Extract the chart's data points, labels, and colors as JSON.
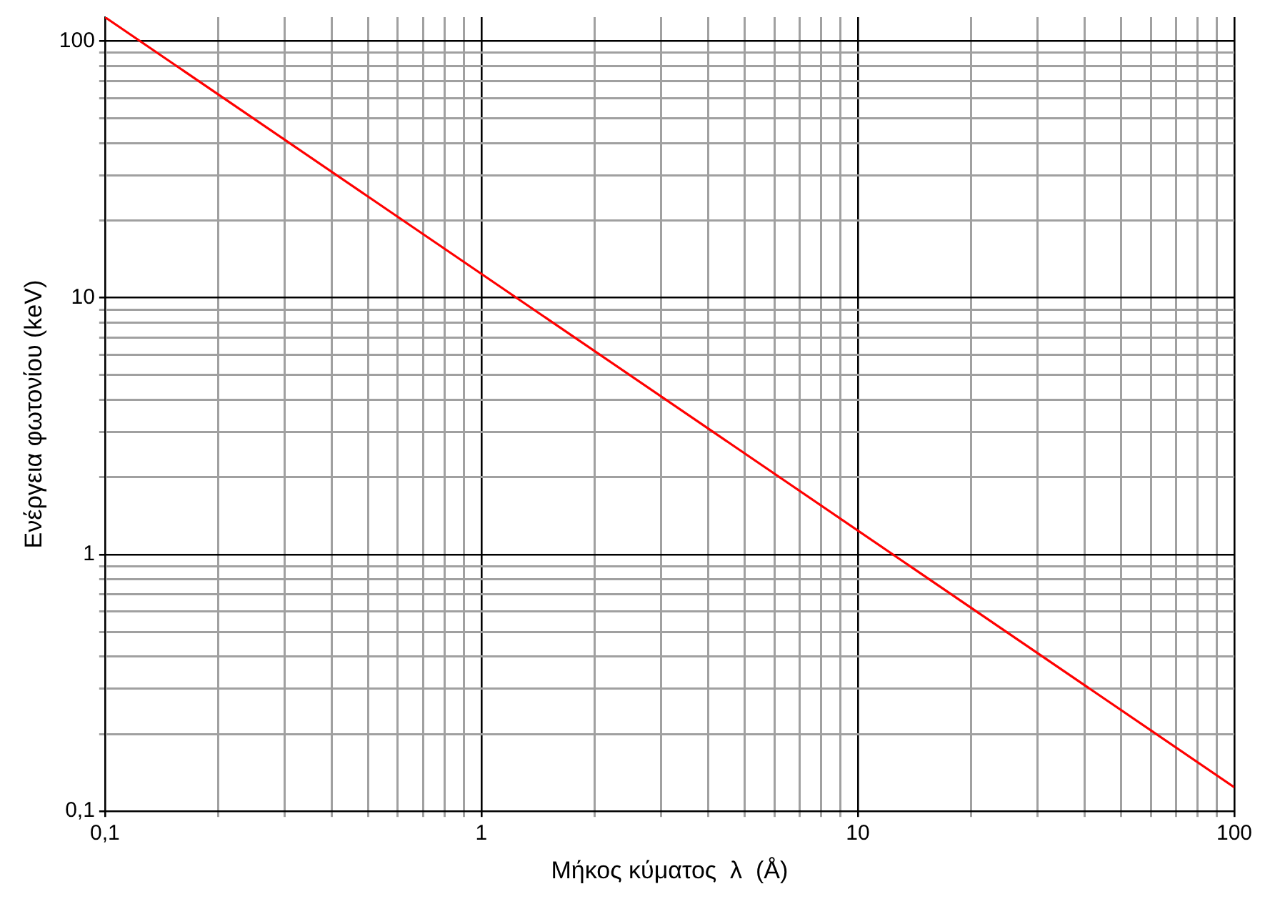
{
  "chart_data": {
    "type": "line",
    "xlabel": "Μήκος κύματος  λ  (Å)",
    "ylabel": "Ενέργεια φωτονίου (keV)",
    "log": "xy",
    "grid": true,
    "legend": false,
    "marker": "none",
    "line_style": "solid",
    "xlim": [
      0.1,
      100
    ],
    "ylim": [
      0.1,
      124
    ],
    "xticks": [
      {
        "value": 0.1,
        "label": "0,1"
      },
      {
        "value": 0.2,
        "label": null
      },
      {
        "value": 0.3,
        "label": null
      },
      {
        "value": 0.4,
        "label": null
      },
      {
        "value": 0.5,
        "label": null
      },
      {
        "value": 0.6,
        "label": null
      },
      {
        "value": 0.7,
        "label": null
      },
      {
        "value": 0.8,
        "label": null
      },
      {
        "value": 0.9,
        "label": null
      },
      1,
      {
        "value": 2,
        "label": null
      },
      {
        "value": 3,
        "label": null
      },
      {
        "value": 4,
        "label": null
      },
      {
        "value": 5,
        "label": null
      },
      {
        "value": 6,
        "label": null
      },
      {
        "value": 7,
        "label": null
      },
      {
        "value": 8,
        "label": null
      },
      {
        "value": 9,
        "label": null
      },
      10,
      {
        "value": 20,
        "label": null
      },
      {
        "value": 30,
        "label": null
      },
      {
        "value": 40,
        "label": null
      },
      {
        "value": 50,
        "label": null
      },
      {
        "value": 60,
        "label": null
      },
      {
        "value": 70,
        "label": null
      },
      {
        "value": 80,
        "label": null
      },
      {
        "value": 90,
        "label": null
      },
      100
    ],
    "yticks": [
      {
        "value": 0.1,
        "label": "0,1"
      },
      {
        "value": 0.2,
        "label": null
      },
      {
        "value": 0.3,
        "label": null
      },
      {
        "value": 0.4,
        "label": null
      },
      {
        "value": 0.5,
        "label": null
      },
      {
        "value": 0.6,
        "label": null
      },
      {
        "value": 0.7,
        "label": null
      },
      {
        "value": 0.8,
        "label": null
      },
      {
        "value": 0.9,
        "label": null
      },
      1,
      {
        "value": 2,
        "label": null
      },
      {
        "value": 3,
        "label": null
      },
      {
        "value": 4,
        "label": null
      },
      {
        "value": 5,
        "label": null
      },
      {
        "value": 6,
        "label": null
      },
      {
        "value": 7,
        "label": null
      },
      {
        "value": 8,
        "label": null
      },
      {
        "value": 9,
        "label": null
      },
      10,
      {
        "value": 20,
        "label": null
      },
      {
        "value": 30,
        "label": null
      },
      {
        "value": 40,
        "label": null
      },
      {
        "value": 50,
        "label": null
      },
      {
        "value": 60,
        "label": null
      },
      {
        "value": 70,
        "label": null
      },
      {
        "value": 80,
        "label": null
      },
      {
        "value": 90,
        "label": null
      },
      100
    ],
    "series": [
      {
        "color": "#ff0000",
        "x": [
          0.1,
          100
        ],
        "values": [
          124,
          0.124
        ]
      }
    ]
  }
}
